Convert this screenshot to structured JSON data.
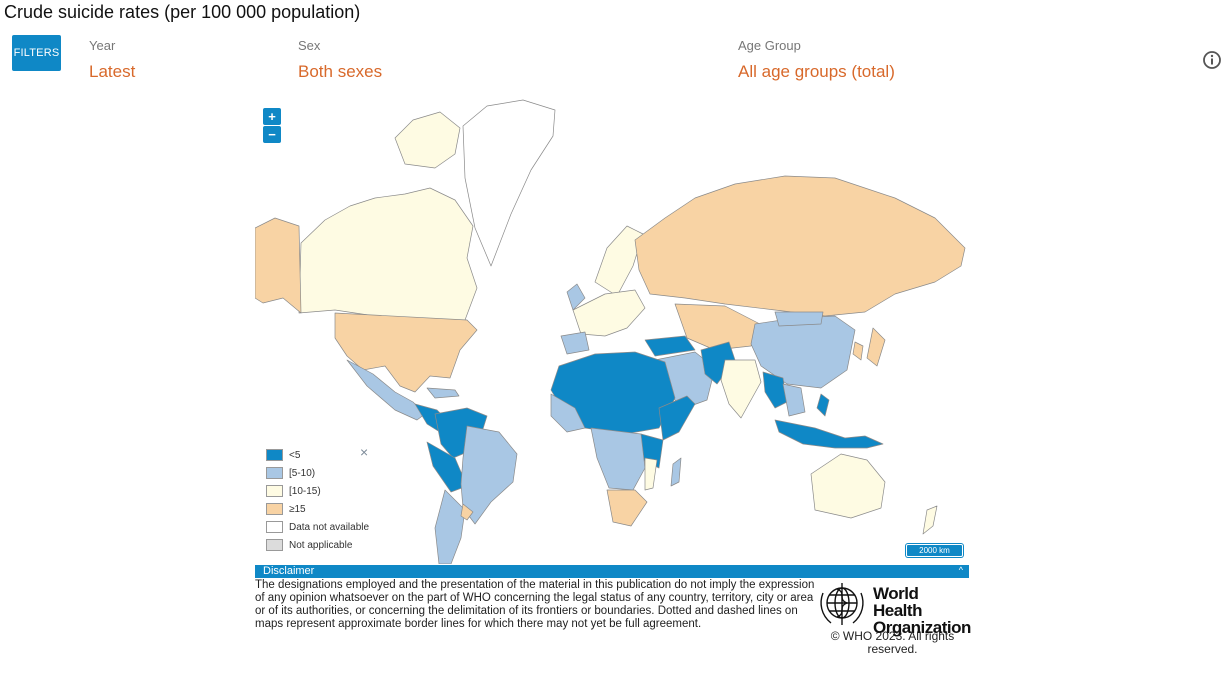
{
  "title": "Crude suicide rates (per 100 000 population)",
  "filters_button": "FILTERS",
  "filters": {
    "year": {
      "label": "Year",
      "value": "Latest"
    },
    "sex": {
      "label": "Sex",
      "value": "Both sexes"
    },
    "age": {
      "label": "Age Group",
      "value": "All age groups (total)"
    }
  },
  "zoom": {
    "in": "+",
    "out": "−"
  },
  "legend": {
    "items": [
      {
        "label": "<5",
        "color": "#0f88c6"
      },
      {
        "label": "[5-10)",
        "color": "#a9c7e4"
      },
      {
        "label": "[10-15)",
        "color": "#fefbe3"
      },
      {
        "label": "≥15",
        "color": "#f8d3a4"
      },
      {
        "label": "Data not available",
        "color": "#ffffff"
      },
      {
        "label": "Not applicable",
        "color": "#dcdcdc"
      }
    ],
    "close": "×"
  },
  "scale": "2000 km",
  "disclaimer": {
    "title": "Disclaimer",
    "caret": "^",
    "text": "The designations employed and the presentation of the material in this publication do not imply the expression of any opinion whatsoever on the part of WHO concerning the legal status of any country, territory, city or area or of its authorities, or concerning the delimitation of its frontiers or boundaries. Dotted and dashed lines on maps represent approximate border lines for which there may not yet be full agreement."
  },
  "logo": {
    "line1": "World Health",
    "line2": "Organization"
  },
  "copyright": "© WHO 2023. All rights reserved.",
  "colors": {
    "accent": "#0f88c6",
    "filter_value": "#d8692b"
  }
}
